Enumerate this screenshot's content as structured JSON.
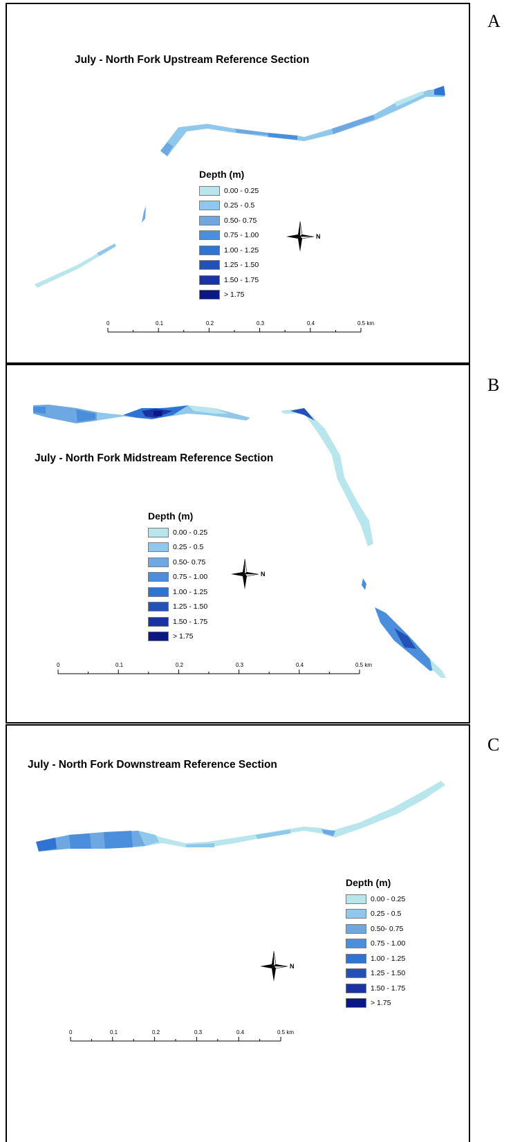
{
  "panels": [
    {
      "letter": "A",
      "title": "July - North Fork Upstream Reference Section"
    },
    {
      "letter": "B",
      "title": "July - North Fork Midstream Reference Section"
    },
    {
      "letter": "C",
      "title": "July - North Fork Downstream Reference Section"
    }
  ],
  "legend": {
    "title": "Depth (m)",
    "items": [
      {
        "label": "0.00 - 0.25",
        "color": "#b8e6ec"
      },
      {
        "label": "0.25 - 0.5",
        "color": "#8fc8ea"
      },
      {
        "label": "0.50- 0.75",
        "color": "#6ea8e2"
      },
      {
        "label": "0.75 - 1.00",
        "color": "#4b8fdc"
      },
      {
        "label": "1.00 - 1.25",
        "color": "#2f74d2"
      },
      {
        "label": "1.25 - 1.50",
        "color": "#2451b7"
      },
      {
        "label": "1.50 - 1.75",
        "color": "#1a33a4"
      },
      {
        "label": "> 1.75",
        "color": "#0b1784"
      }
    ]
  },
  "scale_bar": {
    "ticks": [
      "0",
      "0.1",
      "0.2",
      "0.3",
      "0.4",
      "0.5 km"
    ]
  },
  "north_arrow": {
    "label": "N",
    "icon": "north-arrow-icon"
  }
}
